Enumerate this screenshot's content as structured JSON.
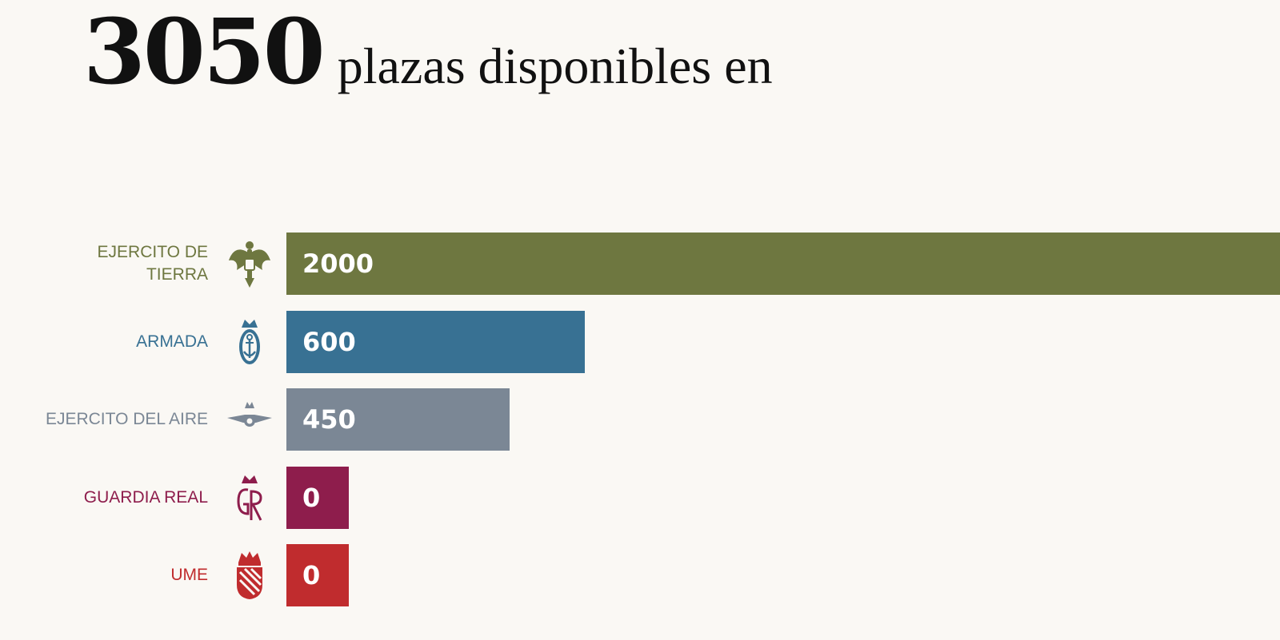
{
  "headline": {
    "total": "3050",
    "text": "plazas disponibles en"
  },
  "chart_data": {
    "type": "bar",
    "orientation": "horizontal",
    "categories": [
      "EJERCITO DE TIERRA",
      "ARMADA",
      "EJERCITO DEL AIRE",
      "GUARDIA REAL",
      "UME"
    ],
    "values": [
      2000,
      600,
      450,
      0,
      0
    ],
    "value_labels": [
      "2000",
      "600",
      "450",
      "0",
      "0"
    ],
    "colors": [
      "#6e7740",
      "#387193",
      "#7b8795",
      "#8e1d4c",
      "#c02c2e"
    ],
    "icons": [
      "eagle-emblem-icon",
      "anchor-emblem-icon",
      "wings-emblem-icon",
      "gr-monogram-icon",
      "crowned-shield-icon"
    ],
    "title": "",
    "xlabel": "",
    "ylabel": "",
    "xlim": [
      0,
      2000
    ],
    "grid": false,
    "legend": "none"
  }
}
